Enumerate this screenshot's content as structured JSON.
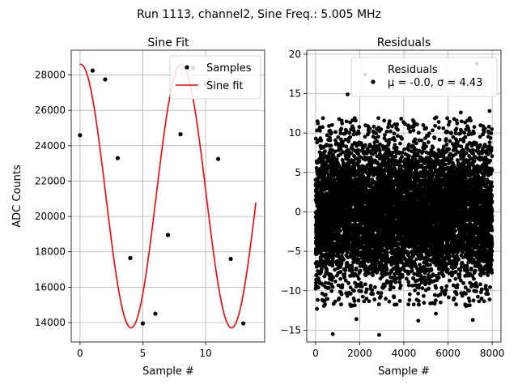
{
  "figure": {
    "title": "Run 1113, channel2, Sine Freq.: 5.005 MHz"
  },
  "chart_data": [
    {
      "type": "line",
      "title": "Sine Fit",
      "xlabel": "Sample #",
      "ylabel": "ADC Counts",
      "xlim": [
        -0.7,
        14.7
      ],
      "ylim": [
        12900,
        29400
      ],
      "xticks": [
        0,
        5,
        10
      ],
      "yticks": [
        14000,
        16000,
        18000,
        20000,
        22000,
        24000,
        26000,
        28000
      ],
      "grid": true,
      "legend": {
        "placement": "top-right",
        "entries": [
          "Samples",
          "Sine fit"
        ]
      },
      "series": [
        {
          "name": "Samples",
          "kind": "scatter",
          "color": "#000000",
          "x": [
            0,
            1,
            2,
            3,
            4,
            5,
            6,
            7,
            8,
            9,
            10,
            11,
            12,
            13
          ],
          "y": [
            24600,
            28250,
            27750,
            23300,
            17650,
            13950,
            14500,
            18950,
            24650,
            28400,
            27500,
            23250,
            17600,
            13950
          ]
        },
        {
          "name": "Sine fit",
          "kind": "line",
          "color": "#ff0000",
          "function": {
            "offset": 21150,
            "amplitude": 7450,
            "period": 8.0,
            "phase_deg": 87.2,
            "x_start": 0,
            "x_end": 14
          }
        }
      ]
    },
    {
      "type": "scatter",
      "title": "Residuals",
      "xlabel": "Sample #",
      "ylabel": "",
      "xlim": [
        -400,
        8400
      ],
      "ylim": [
        -16.5,
        20.5
      ],
      "xticks": [
        0,
        2000,
        4000,
        6000,
        8000
      ],
      "yticks": [
        -15,
        -10,
        -5,
        0,
        5,
        10,
        15,
        20
      ],
      "grid": true,
      "legend": {
        "placement": "top-right",
        "entries": [
          "Residuals",
          "μ = -0.0, σ = 4.43"
        ]
      },
      "series": [
        {
          "name": "Residuals",
          "color": "#000000",
          "mean": -0.0,
          "sigma": 4.43,
          "n_points": 8000,
          "outliers": [
            {
              "x": 2250,
              "y": 17.4
            },
            {
              "x": 7300,
              "y": 18.8
            },
            {
              "x": 1450,
              "y": 14.9
            },
            {
              "x": 780,
              "y": -15.5
            },
            {
              "x": 2880,
              "y": -15.6
            },
            {
              "x": 60,
              "y": -12.3
            },
            {
              "x": 1850,
              "y": -13.6
            },
            {
              "x": 4650,
              "y": -13.8
            },
            {
              "x": 5450,
              "y": -12.9
            },
            {
              "x": 7120,
              "y": -13.7
            },
            {
              "x": 6580,
              "y": 12.6
            },
            {
              "x": 7880,
              "y": 12.8
            }
          ]
        }
      ]
    }
  ]
}
